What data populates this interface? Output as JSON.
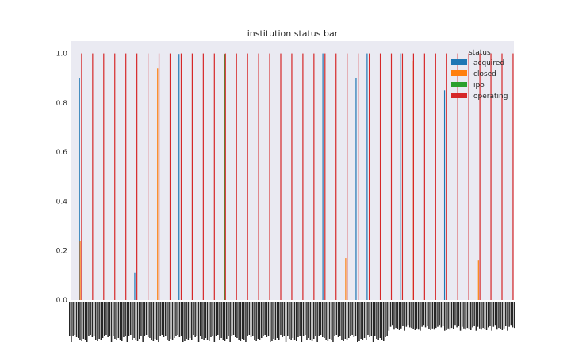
{
  "chart_data": {
    "type": "bar",
    "title": "institution status bar",
    "xlabel": "",
    "ylabel": "",
    "ylim": [
      0,
      1.05
    ],
    "y_ticks": [
      "0.0",
      "0.2",
      "0.4",
      "0.6",
      "0.8",
      "1.0"
    ],
    "grid": false,
    "legend": {
      "title": "status",
      "placement": "top-right",
      "entries": [
        {
          "name": "acquired",
          "color": "#1f77b4"
        },
        {
          "name": "closed",
          "color": "#ff7f0e"
        },
        {
          "name": "ipo",
          "color": "#2ca02c"
        },
        {
          "name": "operating",
          "color": "#d62728"
        }
      ]
    },
    "categories_count": 40,
    "series": [
      {
        "name": "acquired",
        "color": "#1f77b4",
        "values": [
          0.9,
          0,
          0,
          0,
          0,
          0.11,
          0,
          0,
          0,
          0.998,
          0,
          0,
          0,
          0,
          0,
          0,
          0,
          0,
          0,
          0,
          0,
          0,
          1.0,
          0,
          0,
          0.9,
          1.0,
          0,
          0,
          1.0,
          0,
          0,
          0,
          0.85,
          0,
          0,
          0,
          0,
          0,
          0
        ]
      },
      {
        "name": "closed",
        "color": "#ff7f0e",
        "values": [
          0.24,
          0,
          0,
          0,
          0,
          0,
          0,
          0.94,
          0,
          0,
          0,
          0,
          0,
          0,
          0,
          0,
          0,
          0,
          0,
          0,
          0,
          0,
          0,
          0,
          0.17,
          0,
          0,
          0,
          0,
          0,
          0.97,
          0,
          0,
          0,
          0,
          0,
          0.16,
          0,
          0,
          0
        ]
      },
      {
        "name": "ipo",
        "color": "#2ca02c",
        "values": [
          0,
          0,
          0,
          0,
          0,
          0,
          0,
          0,
          0,
          0,
          0,
          0,
          0,
          0.998,
          0,
          0,
          0,
          0,
          0,
          0,
          0,
          0,
          0,
          0,
          0,
          0,
          0,
          0,
          0,
          0,
          0,
          0,
          0,
          0,
          0,
          0,
          0,
          0,
          0,
          0
        ]
      },
      {
        "name": "operating",
        "color": "#d62728",
        "values": [
          1,
          1,
          1,
          1,
          1,
          1,
          1,
          1,
          1,
          1,
          1,
          1,
          1,
          1,
          1,
          1,
          1,
          1,
          1,
          1,
          1,
          1,
          1,
          1,
          1,
          1,
          1,
          1,
          1,
          1,
          1,
          1,
          1,
          1,
          1,
          1,
          1,
          1,
          1,
          1
        ]
      }
    ]
  }
}
